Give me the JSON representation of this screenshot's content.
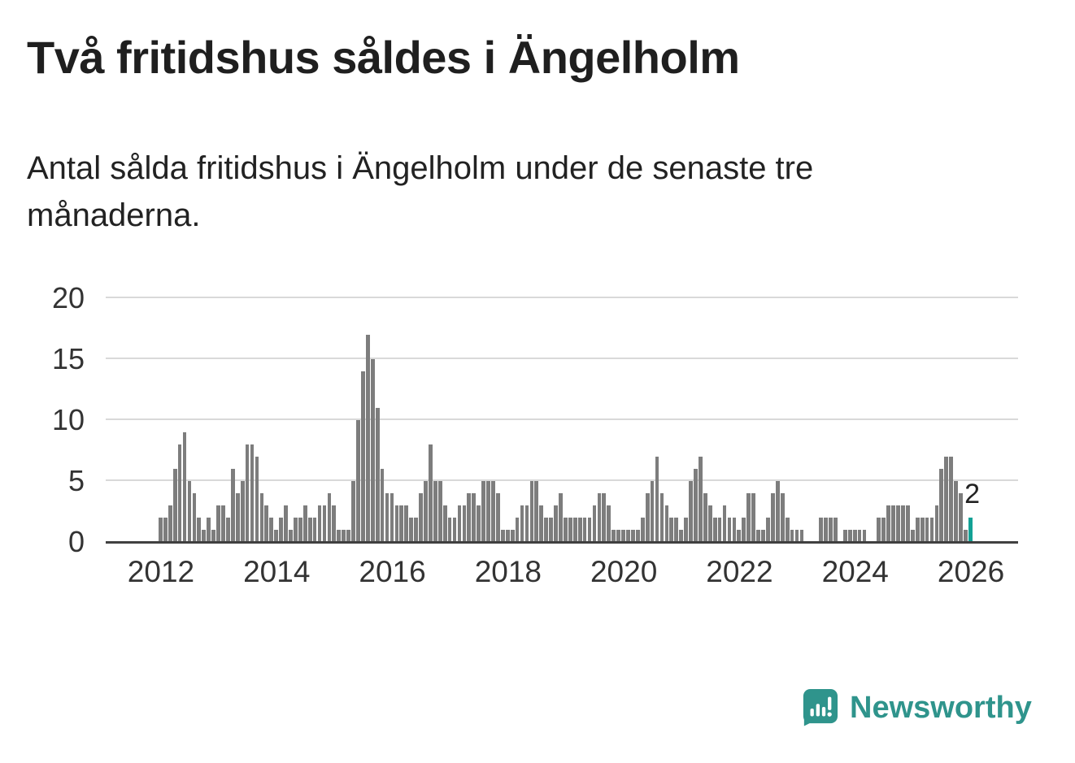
{
  "title": "Två fritidshus såldes i Ängelholm",
  "subtitle": "Antal sålda fritidshus i Ängelholm under de senaste tre månaderna.",
  "annotation": {
    "label": "2"
  },
  "branding": {
    "name": "Newsworthy"
  },
  "colors": {
    "bar": "#7d7d7d",
    "bar_highlight": "#13a195",
    "grid": "#d9d9d9",
    "axis": "#404040",
    "brand": "#2f948c",
    "text": "#222222"
  },
  "chart_data": {
    "type": "bar",
    "title": "Två fritidshus såldes i Ängelholm",
    "subtitle": "Antal sålda fritidshus i Ängelholm under de senaste tre månaderna.",
    "unit": "antal sålda fritidshus (rullande tre månader)",
    "start_year": 2012,
    "frequency": "monthly",
    "x_range": [
      "2012-01",
      "2026-01"
    ],
    "xticks": [
      2012,
      2014,
      2016,
      2018,
      2020,
      2022,
      2024,
      2026
    ],
    "yticks": [
      0,
      5,
      10,
      15,
      20
    ],
    "ylim": [
      0,
      20
    ],
    "grid": true,
    "highlight_last": true,
    "last_value_label": "2",
    "values": [
      2,
      2,
      3,
      6,
      8,
      9,
      5,
      4,
      2,
      1,
      2,
      1,
      3,
      3,
      2,
      6,
      4,
      5,
      8,
      8,
      7,
      4,
      3,
      2,
      1,
      2,
      3,
      1,
      2,
      2,
      3,
      2,
      2,
      3,
      3,
      4,
      3,
      1,
      1,
      1,
      5,
      10,
      14,
      17,
      15,
      11,
      6,
      4,
      4,
      3,
      3,
      3,
      2,
      2,
      4,
      5,
      8,
      5,
      5,
      3,
      2,
      2,
      3,
      3,
      4,
      4,
      3,
      5,
      5,
      5,
      4,
      1,
      1,
      1,
      2,
      3,
      3,
      5,
      5,
      3,
      2,
      2,
      3,
      4,
      2,
      2,
      2,
      2,
      2,
      2,
      3,
      4,
      4,
      3,
      1,
      1,
      1,
      1,
      1,
      1,
      2,
      4,
      5,
      7,
      4,
      3,
      2,
      2,
      1,
      2,
      5,
      6,
      7,
      4,
      3,
      2,
      2,
      3,
      2,
      2,
      1,
      2,
      4,
      4,
      1,
      1,
      2,
      4,
      5,
      4,
      2,
      1,
      1,
      1,
      0,
      0,
      0,
      2,
      2,
      2,
      2,
      0,
      1,
      1,
      1,
      1,
      1,
      0,
      0,
      2,
      2,
      3,
      3,
      3,
      3,
      3,
      1,
      2,
      2,
      2,
      2,
      3,
      6,
      7,
      7,
      5,
      4,
      1,
      2
    ]
  }
}
